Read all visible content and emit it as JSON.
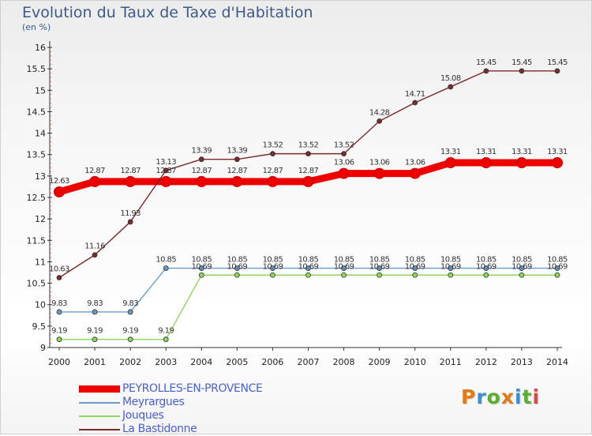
{
  "title": "Evolution du Taux de Taxe d'Habitation",
  "unit": "(en %)",
  "logo": {
    "text": "Proxiti",
    "colors": [
      "#e07b16",
      "#3a8fd4",
      "#5aae2e",
      "#e07b16",
      "#3a8fd4",
      "#5aae2e",
      "#d64a4a"
    ]
  },
  "chart_data": {
    "type": "line",
    "title": "Evolution du Taux de Taxe d'Habitation",
    "ylabel": "(en %)",
    "xlabel": "",
    "x": [
      "2000",
      "2001",
      "2002",
      "2003",
      "2004",
      "2005",
      "2006",
      "2007",
      "2008",
      "2009",
      "2010",
      "2011",
      "2012",
      "2013",
      "2014"
    ],
    "ylim": [
      9,
      16
    ],
    "yticks": [
      "9",
      "9.5",
      "10",
      "10.5",
      "11",
      "11.5",
      "12",
      "12.5",
      "13",
      "13.5",
      "14",
      "14.5",
      "15",
      "15.5",
      "16"
    ],
    "grid": false,
    "legend": "bottom-left",
    "series": [
      {
        "name": "PEYROLLES-EN-PROVENCE",
        "color": "#ee0000",
        "values": [
          12.63,
          12.87,
          12.87,
          12.87,
          12.87,
          12.87,
          12.87,
          12.87,
          13.06,
          13.06,
          13.06,
          13.31,
          13.31,
          13.31,
          13.31
        ],
        "labels": [
          "12.63",
          "12.87",
          "12.87",
          "12.87",
          "12.87",
          "12.87",
          "12.87",
          "12.87",
          "13.06",
          "13.06",
          "13.06",
          "13.31",
          "13.31",
          "13.31",
          "13.31"
        ]
      },
      {
        "name": "Meyrargues",
        "color": "#6b9bc8",
        "values": [
          9.83,
          9.83,
          9.83,
          10.85,
          10.85,
          10.85,
          10.85,
          10.85,
          10.85,
          10.85,
          10.85,
          10.85,
          10.85,
          10.85,
          10.85
        ],
        "labels": [
          "9.83",
          "9.83",
          "9.83",
          "10.85",
          "10.85",
          "10.85",
          "10.85",
          "10.85",
          "10.85",
          "10.85",
          "10.85",
          "10.85",
          "10.85",
          "10.85",
          "10.85"
        ]
      },
      {
        "name": "Jouques",
        "color": "#8fd65a",
        "values": [
          9.19,
          9.19,
          9.19,
          9.19,
          10.69,
          10.69,
          10.69,
          10.69,
          10.69,
          10.69,
          10.69,
          10.69,
          10.69,
          10.69,
          10.69
        ],
        "labels": [
          "9.19",
          "9.19",
          "9.19",
          "9.19",
          "10.69",
          "10.69",
          "10.69",
          "10.69",
          "10.69",
          "10.69",
          "10.69",
          "10.69",
          "10.69",
          "10.69",
          "10.69"
        ]
      },
      {
        "name": "La Bastidonne",
        "color": "#7a2a2a",
        "values": [
          10.63,
          11.16,
          11.93,
          13.13,
          13.39,
          13.39,
          13.52,
          13.52,
          13.52,
          14.28,
          14.71,
          15.08,
          15.45,
          15.45,
          15.45
        ],
        "labels": [
          "10.63",
          "11.16",
          "11.93",
          "13.13",
          "13.39",
          "13.39",
          "13.52",
          "13.52",
          "13.52",
          "14.28",
          "14.71",
          "15.08",
          "15.45",
          "15.45",
          "15.45"
        ]
      }
    ]
  }
}
